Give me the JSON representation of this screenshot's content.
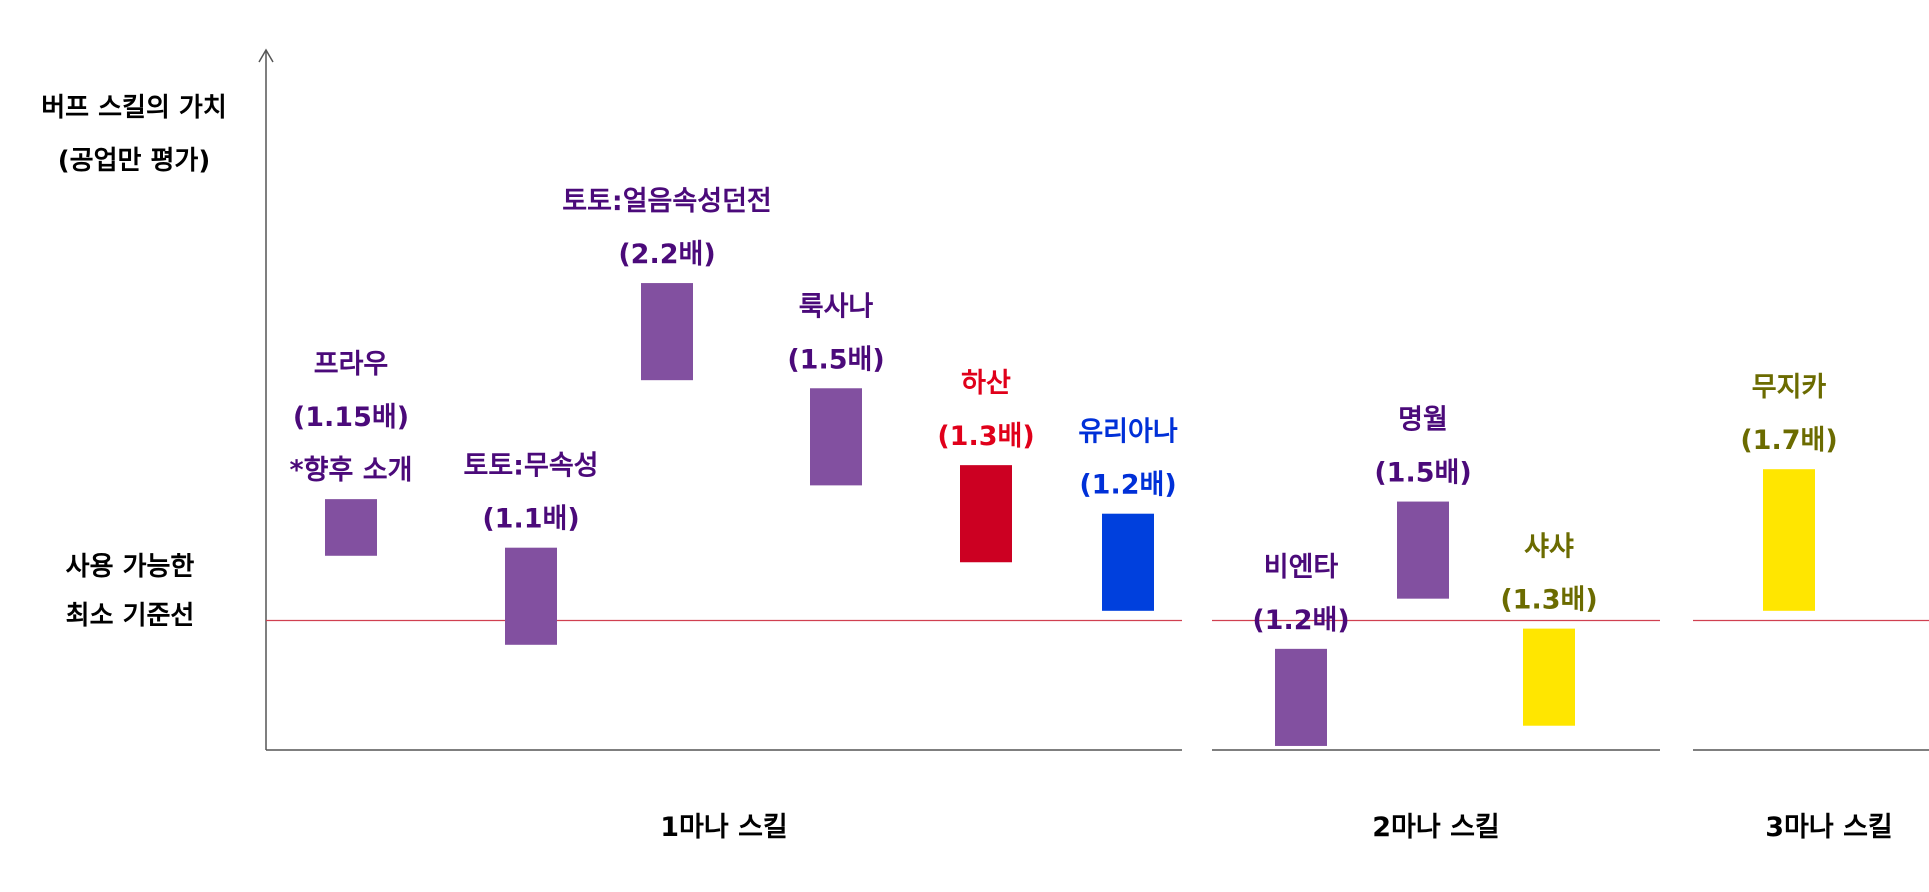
{
  "chart_data": {
    "type": "bar",
    "ylabel": [
      "버프 스킬의 가치",
      "(공업만 평가)"
    ],
    "baseline_label": [
      "사용 가능한",
      "최소 기준선"
    ],
    "groups": [
      {
        "label": "1마나 스킬",
        "bars": [
          {
            "name": "프라우",
            "value_label": "(1.15배)",
            "note": "*향후 소개",
            "low": 0.8,
            "high": 1.5,
            "color": "#8250A0",
            "text_color": "#4B0A7A"
          },
          {
            "name": "토토:무속성",
            "value_label": "(1.1배)",
            "low": -0.3,
            "high": 0.9,
            "color": "#8250A0",
            "text_color": "#4B0A7A"
          },
          {
            "name": "토토:얼음속성던전",
            "value_label": "(2.2배)",
            "low": 2.97,
            "high": 4.17,
            "color": "#8250A0",
            "text_color": "#4B0A7A"
          },
          {
            "name": "룩사나",
            "value_label": "(1.5배)",
            "low": 1.67,
            "high": 2.87,
            "color": "#8250A0",
            "text_color": "#4B0A7A"
          },
          {
            "name": "하산",
            "value_label": "(1.3배)",
            "low": 0.72,
            "high": 1.92,
            "color": "#CC0022",
            "text_color": "#E0001A"
          },
          {
            "name": "유리아나",
            "value_label": "(1.2배)",
            "low": 0.12,
            "high": 1.32,
            "color": "#0040DD",
            "text_color": "#0030D8"
          }
        ]
      },
      {
        "label": "2마나 스킬",
        "bars": [
          {
            "name": "비엔타",
            "value_label": "(1.2배)",
            "low": -1.55,
            "high": -0.35,
            "color": "#8250A0",
            "text_color": "#4B0A7A"
          },
          {
            "name": "명월",
            "value_label": "(1.5배)",
            "low": 0.27,
            "high": 1.47,
            "color": "#8250A0",
            "text_color": "#4B0A7A"
          },
          {
            "name": "샤샤",
            "value_label": "(1.3배)",
            "low": -1.3,
            "high": -0.1,
            "color": "#FFE600",
            "text_color": "#6B6B00"
          }
        ]
      },
      {
        "label": "3마나 스킬",
        "bars": [
          {
            "name": "무지카",
            "value_label": "(1.7배)",
            "low": 0.12,
            "high": 1.87,
            "color": "#FFE600",
            "text_color": "#6B6B00"
          }
        ]
      }
    ],
    "baseline_value": 0,
    "baseline_color": "#D04050",
    "ylim": [
      -1.6,
      7.05
    ],
    "grid": false,
    "legend": "none"
  }
}
